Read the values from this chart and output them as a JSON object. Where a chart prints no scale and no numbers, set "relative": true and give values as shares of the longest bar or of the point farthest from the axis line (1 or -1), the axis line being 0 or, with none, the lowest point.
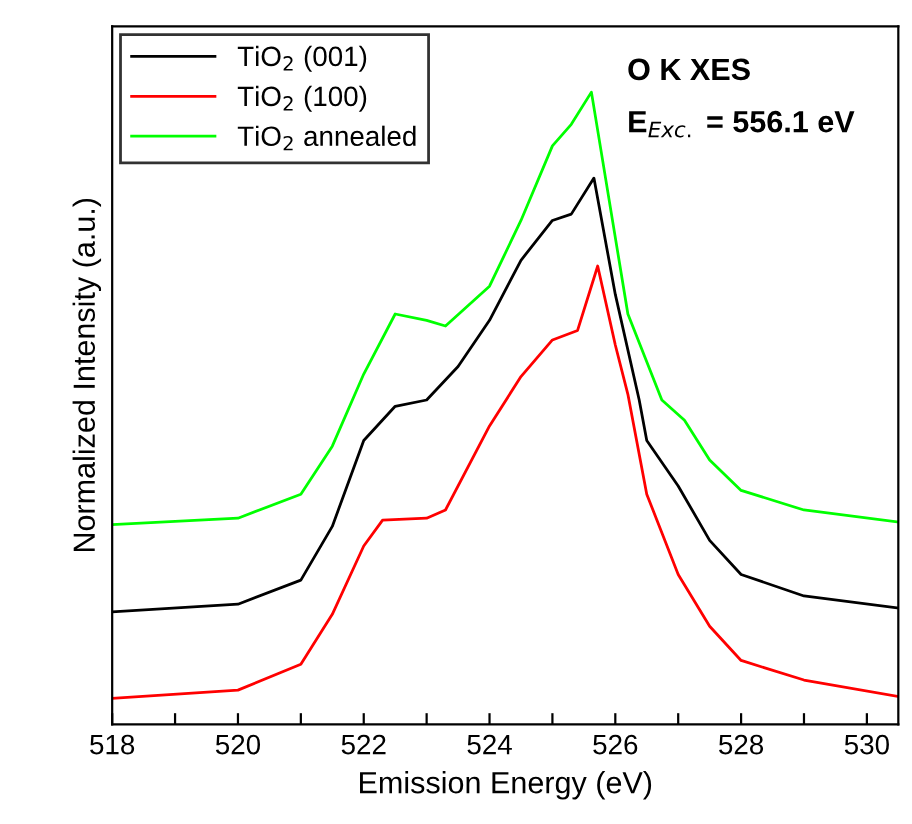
{
  "chart_data": {
    "type": "line",
    "relative": true,
    "xlabel": "Emission Energy (eV)",
    "ylabel": "Normalized Intensity (a.u.)",
    "annotations": [
      "O K XES",
      "E$_{Exc.}$ = 556.1 eV"
    ],
    "xlim": [
      518,
      530.5
    ],
    "xticks": [
      518,
      {
        "value": 519,
        "label": null
      },
      520,
      {
        "value": 521,
        "label": null
      },
      522,
      {
        "value": 523,
        "label": null
      },
      524,
      {
        "value": 525,
        "label": null
      },
      526,
      {
        "value": 527,
        "label": null
      },
      528,
      {
        "value": 529,
        "label": null
      },
      530
    ],
    "tick_labels": "x",
    "grid": false,
    "legend": "top left",
    "marker": "none",
    "line_style": "solid",
    "series": [
      {
        "name": "TiO$_{2}$ (001)",
        "color": "#000000",
        "x": [
          518,
          520,
          521,
          521.5,
          522,
          522.5,
          523,
          523.5,
          524,
          524.5,
          525,
          525.3,
          525.66,
          526.0,
          526.38,
          526.5,
          527,
          527.5,
          528,
          529,
          530.5
        ],
        "values": [
          0.178,
          0.19,
          0.228,
          0.313,
          0.449,
          0.503,
          0.513,
          0.566,
          0.639,
          0.734,
          0.797,
          0.807,
          0.864,
          0.68,
          0.513,
          0.449,
          0.377,
          0.291,
          0.237,
          0.203,
          0.184
        ]
      },
      {
        "name": "TiO$_{2}$ (100)",
        "color": "#ff0000",
        "x": [
          518,
          520,
          521,
          521.5,
          522,
          522.3,
          523,
          523.3,
          524,
          524.5,
          525,
          525.4,
          525.72,
          526.0,
          526.2,
          526.5,
          527,
          527.5,
          528,
          529,
          530.5
        ],
        "values": [
          0.041,
          0.054,
          0.095,
          0.174,
          0.282,
          0.323,
          0.326,
          0.339,
          0.472,
          0.55,
          0.608,
          0.623,
          0.725,
          0.6,
          0.522,
          0.364,
          0.237,
          0.155,
          0.101,
          0.07,
          0.044
        ]
      },
      {
        "name": "TiO$_{2}$ annealed",
        "color": "#00ff00",
        "x": [
          518,
          520,
          521,
          521.5,
          522,
          522.5,
          523,
          523.3,
          524,
          524.5,
          525,
          525.3,
          525.62,
          526.2,
          526.74,
          527.1,
          527.5,
          528,
          529,
          530.5
        ],
        "values": [
          0.316,
          0.326,
          0.364,
          0.44,
          0.554,
          0.649,
          0.639,
          0.63,
          0.693,
          0.797,
          0.915,
          0.949,
          1.0,
          0.649,
          0.513,
          0.481,
          0.418,
          0.37,
          0.339,
          0.32
        ]
      }
    ]
  }
}
